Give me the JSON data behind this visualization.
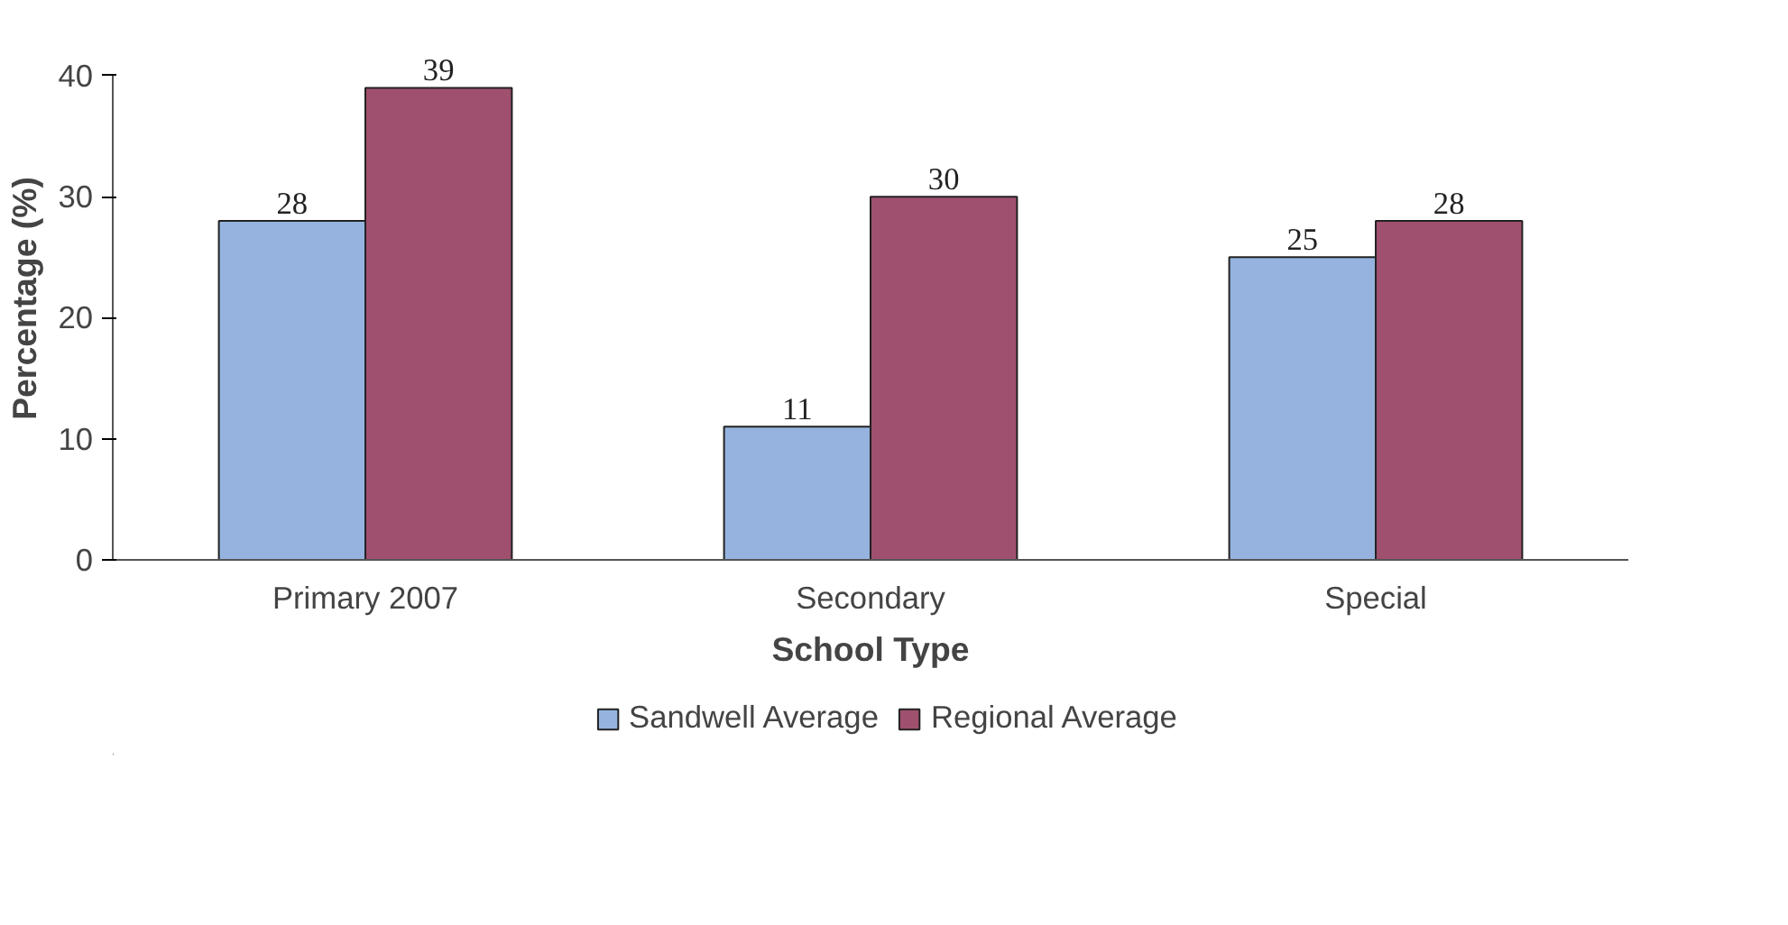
{
  "chart_data": {
    "type": "bar",
    "xlabel": "School Type",
    "ylabel": "Percentage (%)",
    "categories": [
      "Primary 2007",
      "Secondary",
      "Special"
    ],
    "series": [
      {
        "name": "Sandwell Average",
        "color": "#95b3de",
        "values": [
          28,
          11,
          25
        ]
      },
      {
        "name": "Regional Average",
        "color": "#a0506f",
        "values": [
          39,
          30,
          28
        ]
      }
    ],
    "ylim": [
      0,
      40
    ],
    "yticks": [
      0,
      10,
      20,
      30,
      40
    ],
    "grid": false,
    "legend": "bottom",
    "data_labels": true
  }
}
